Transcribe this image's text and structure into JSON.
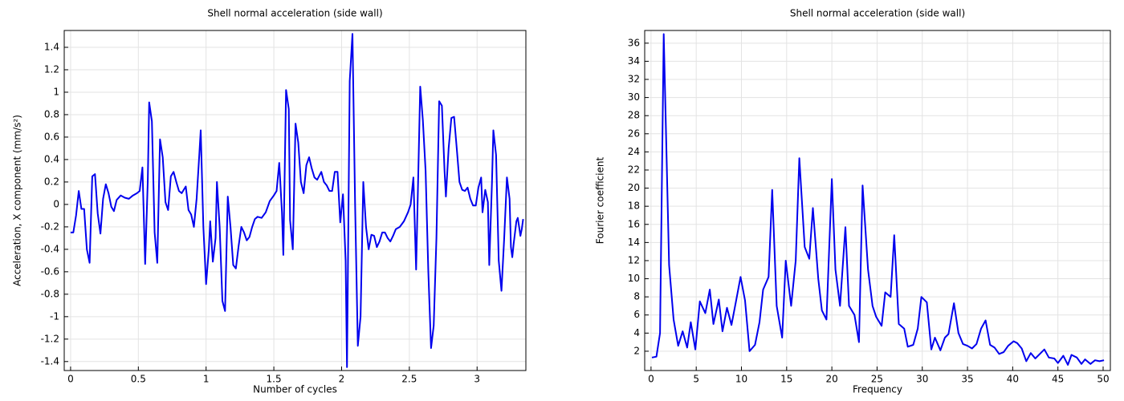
{
  "chart_data": [
    {
      "type": "line",
      "title": "Shell normal acceleration (side wall)",
      "xlabel": "Number of cycles",
      "ylabel": "Acceleration, X component (mm/s²)",
      "color": "#0000ee",
      "grid": true,
      "xlim": [
        -0.047,
        3.36
      ],
      "ylim": [
        -1.48,
        1.55
      ],
      "xticks": [
        0,
        0.5,
        1,
        1.5,
        2,
        2.5,
        3
      ],
      "yticks": [
        -1.4,
        -1.2,
        -1,
        -0.8,
        -0.6,
        -0.4,
        -0.2,
        0,
        0.2,
        0.4,
        0.6,
        0.8,
        1,
        1.2,
        1.4
      ],
      "x": [
        0,
        0.02,
        0.04,
        0.06,
        0.08,
        0.1,
        0.12,
        0.14,
        0.16,
        0.18,
        0.2,
        0.22,
        0.24,
        0.26,
        0.28,
        0.3,
        0.32,
        0.34,
        0.37,
        0.4,
        0.43,
        0.46,
        0.49,
        0.51,
        0.53,
        0.55,
        0.57,
        0.58,
        0.6,
        0.62,
        0.64,
        0.66,
        0.68,
        0.7,
        0.72,
        0.74,
        0.76,
        0.78,
        0.8,
        0.82,
        0.85,
        0.87,
        0.89,
        0.91,
        0.93,
        0.95,
        0.96,
        0.98,
        1.0,
        1.02,
        1.03,
        1.05,
        1.07,
        1.08,
        1.1,
        1.12,
        1.14,
        1.16,
        1.18,
        1.2,
        1.22,
        1.24,
        1.26,
        1.28,
        1.3,
        1.32,
        1.34,
        1.36,
        1.38,
        1.41,
        1.44,
        1.47,
        1.5,
        1.52,
        1.54,
        1.56,
        1.57,
        1.59,
        1.61,
        1.62,
        1.64,
        1.66,
        1.68,
        1.7,
        1.72,
        1.74,
        1.76,
        1.78,
        1.8,
        1.82,
        1.85,
        1.87,
        1.89,
        1.91,
        1.93,
        1.95,
        1.97,
        1.99,
        2.01,
        2.03,
        2.04,
        2.06,
        2.08,
        2.1,
        2.12,
        2.14,
        2.16,
        2.18,
        2.2,
        2.22,
        2.24,
        2.26,
        2.28,
        2.3,
        2.32,
        2.34,
        2.36,
        2.38,
        2.4,
        2.43,
        2.46,
        2.49,
        2.51,
        2.53,
        2.55,
        2.57,
        2.58,
        2.6,
        2.62,
        2.64,
        2.66,
        2.68,
        2.7,
        2.72,
        2.74,
        2.76,
        2.77,
        2.79,
        2.81,
        2.83,
        2.85,
        2.87,
        2.89,
        2.91,
        2.93,
        2.95,
        2.97,
        2.99,
        3.01,
        3.03,
        3.04,
        3.06,
        3.08,
        3.09,
        3.11,
        3.12,
        3.14,
        3.16,
        3.18,
        3.2,
        3.22,
        3.24,
        3.25,
        3.26,
        3.27,
        3.29,
        3.3,
        3.31,
        3.32,
        3.33,
        3.34
      ],
      "values": [
        -0.25,
        -0.25,
        -0.1,
        0.12,
        -0.04,
        -0.04,
        -0.4,
        -0.52,
        0.25,
        0.27,
        -0.08,
        -0.26,
        0.05,
        0.18,
        0.1,
        -0.02,
        -0.06,
        0.04,
        0.08,
        0.06,
        0.05,
        0.08,
        0.1,
        0.12,
        0.33,
        -0.53,
        0.22,
        0.91,
        0.74,
        -0.25,
        -0.52,
        0.58,
        0.42,
        0.02,
        -0.05,
        0.25,
        0.29,
        0.2,
        0.12,
        0.1,
        0.16,
        -0.05,
        -0.09,
        -0.2,
        0.05,
        0.45,
        0.66,
        -0.2,
        -0.71,
        -0.4,
        -0.15,
        -0.51,
        -0.3,
        0.2,
        -0.2,
        -0.86,
        -0.95,
        0.07,
        -0.2,
        -0.54,
        -0.57,
        -0.37,
        -0.2,
        -0.25,
        -0.32,
        -0.29,
        -0.2,
        -0.13,
        -0.11,
        -0.12,
        -0.07,
        0.03,
        0.08,
        0.12,
        0.37,
        -0.07,
        -0.45,
        1.02,
        0.85,
        -0.14,
        -0.4,
        0.72,
        0.55,
        0.2,
        0.1,
        0.35,
        0.42,
        0.32,
        0.24,
        0.22,
        0.29,
        0.2,
        0.17,
        0.12,
        0.12,
        0.29,
        0.29,
        -0.16,
        0.09,
        -0.5,
        -1.45,
        1.1,
        1.52,
        0,
        -1.26,
        -1,
        0.2,
        -0.2,
        -0.4,
        -0.27,
        -0.28,
        -0.38,
        -0.33,
        -0.25,
        -0.25,
        -0.3,
        -0.33,
        -0.28,
        -0.22,
        -0.2,
        -0.15,
        -0.07,
        0,
        0.24,
        -0.58,
        0.5,
        1.05,
        0.75,
        0.3,
        -0.6,
        -1.28,
        -1.08,
        -0.3,
        0.92,
        0.88,
        0.3,
        0.07,
        0.5,
        0.77,
        0.78,
        0.5,
        0.2,
        0.13,
        0.12,
        0.15,
        0.05,
        -0.01,
        -0.01,
        0.15,
        0.24,
        -0.07,
        0.13,
        0.02,
        -0.54,
        0.2,
        0.66,
        0.44,
        -0.5,
        -0.77,
        -0.3,
        0.24,
        0.05,
        -0.38,
        -0.47,
        -0.35,
        -0.15,
        -0.12,
        -0.2,
        -0.28,
        -0.22,
        -0.13
      ]
    },
    {
      "type": "line",
      "title": "Shell normal acceleration (side wall)",
      "xlabel": "Frequency",
      "ylabel": "Fourier coefficient",
      "color": "#0000ee",
      "grid": true,
      "xlim": [
        -0.7,
        50.8
      ],
      "ylim": [
        -0.13,
        37.4
      ],
      "xticks": [
        0,
        5,
        10,
        15,
        20,
        25,
        30,
        35,
        40,
        45,
        50
      ],
      "yticks": [
        2,
        4,
        6,
        8,
        10,
        12,
        14,
        16,
        18,
        20,
        22,
        24,
        26,
        28,
        30,
        32,
        34,
        36
      ],
      "x": [
        0.1,
        0.6,
        1.0,
        1.4,
        2.0,
        2.5,
        3.0,
        3.5,
        4.0,
        4.4,
        4.9,
        5.4,
        6.0,
        6.5,
        6.9,
        7.5,
        7.9,
        8.4,
        8.9,
        9.4,
        9.9,
        10.4,
        10.9,
        11.5,
        12.0,
        12.4,
        13.0,
        13.4,
        13.9,
        14.5,
        14.9,
        15.5,
        16.0,
        16.4,
        17.0,
        17.5,
        17.9,
        18.5,
        18.9,
        19.4,
        20.0,
        20.4,
        20.9,
        21.5,
        21.9,
        22.5,
        23.0,
        23.4,
        24.0,
        24.5,
        24.9,
        25.5,
        25.9,
        26.5,
        26.9,
        27.4,
        28.0,
        28.4,
        29.0,
        29.5,
        29.9,
        30.5,
        31.0,
        31.4,
        32.0,
        32.5,
        32.9,
        33.5,
        34.0,
        34.5,
        35.0,
        35.5,
        36.0,
        36.5,
        37.0,
        37.5,
        38.0,
        38.5,
        39.0,
        39.5,
        40.1,
        40.5,
        41.0,
        41.5,
        42.0,
        42.5,
        43.1,
        43.5,
        44.0,
        44.6,
        45.0,
        45.6,
        46.1,
        46.5,
        47.1,
        47.6,
        48.0,
        48.6,
        49.1,
        49.6,
        50.1
      ],
      "values": [
        1.3,
        1.4,
        4,
        37,
        11.5,
        5.5,
        2.6,
        4.2,
        2.4,
        5.2,
        2.2,
        7.5,
        6.2,
        8.8,
        5,
        7.7,
        4.2,
        6.8,
        4.9,
        7.5,
        10.2,
        7.6,
        2,
        2.7,
        5.2,
        8.8,
        10.2,
        19.8,
        7,
        3.5,
        12,
        7,
        12,
        23.3,
        13.5,
        12.2,
        17.8,
        10,
        6.5,
        5.5,
        21,
        11,
        7,
        15.7,
        7,
        6,
        3,
        20.3,
        11,
        7,
        5.8,
        4.8,
        8.5,
        8,
        14.8,
        5,
        4.5,
        2.5,
        2.7,
        4.5,
        8,
        7.4,
        2.2,
        3.5,
        2.1,
        3.5,
        3.9,
        7.3,
        4,
        2.8,
        2.6,
        2.3,
        2.8,
        4.5,
        5.4,
        2.7,
        2.4,
        1.7,
        1.9,
        2.6,
        3.1,
        2.9,
        2.3,
        0.9,
        1.8,
        1.2,
        1.8,
        2.2,
        1.3,
        1.2,
        0.7,
        1.5,
        0.5,
        1.6,
        1.3,
        0.6,
        1.1,
        0.6,
        1,
        0.9,
        1
      ]
    }
  ]
}
